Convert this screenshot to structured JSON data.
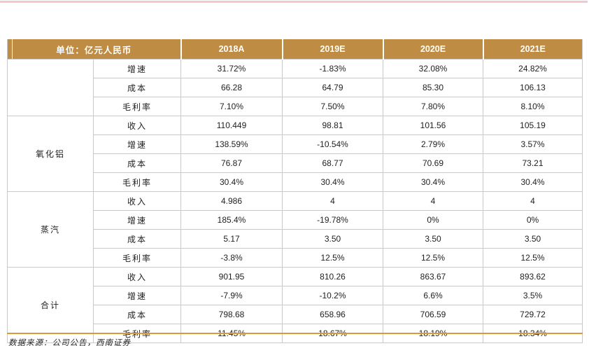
{
  "colors": {
    "header_bg": "#BE8C42",
    "header_text": "#FFFFFF",
    "grid": "#C9C9C9",
    "bottom_rule": "#DC9938",
    "top_rule": "#F2C8CE",
    "body_text": "#1F1F1F"
  },
  "table": {
    "unit_header": "单位：亿元人民币",
    "year_columns": [
      "2018A",
      "2019E",
      "2020E",
      "2021E"
    ],
    "groups": [
      {
        "category": "",
        "rows": [
          {
            "metric": "增速",
            "values": [
              "31.72%",
              "-1.83%",
              "32.08%",
              "24.82%"
            ]
          },
          {
            "metric": "成本",
            "values": [
              "66.28",
              "64.79",
              "85.30",
              "106.13"
            ]
          },
          {
            "metric": "毛利率",
            "values": [
              "7.10%",
              "7.50%",
              "7.80%",
              "8.10%"
            ]
          }
        ]
      },
      {
        "category": "氧化铝",
        "rows": [
          {
            "metric": "收入",
            "values": [
              "110.449",
              "98.81",
              "101.56",
              "105.19"
            ]
          },
          {
            "metric": "增速",
            "values": [
              "138.59%",
              "-10.54%",
              "2.79%",
              "3.57%"
            ]
          },
          {
            "metric": "成本",
            "values": [
              "76.87",
              "68.77",
              "70.69",
              "73.21"
            ]
          },
          {
            "metric": "毛利率",
            "values": [
              "30.4%",
              "30.4%",
              "30.4%",
              "30.4%"
            ]
          }
        ]
      },
      {
        "category": "蒸汽",
        "rows": [
          {
            "metric": "收入",
            "values": [
              "4.986",
              "4",
              "4",
              "4"
            ]
          },
          {
            "metric": "增速",
            "values": [
              "185.4%",
              "-19.78%",
              "0%",
              "0%"
            ]
          },
          {
            "metric": "成本",
            "values": [
              "5.17",
              "3.50",
              "3.50",
              "3.50"
            ]
          },
          {
            "metric": "毛利率",
            "values": [
              "-3.8%",
              "12.5%",
              "12.5%",
              "12.5%"
            ]
          }
        ]
      },
      {
        "category": "合计",
        "rows": [
          {
            "metric": "收入",
            "values": [
              "901.95",
              "810.26",
              "863.67",
              "893.62"
            ]
          },
          {
            "metric": "增速",
            "values": [
              "-7.9%",
              "-10.2%",
              "6.6%",
              "3.5%"
            ]
          },
          {
            "metric": "成本",
            "values": [
              "798.68",
              "658.96",
              "706.59",
              "729.72"
            ]
          },
          {
            "metric": "毛利率",
            "values": [
              "11.45%",
              "18.67%",
              "18.19%",
              "18.34%"
            ]
          }
        ]
      }
    ]
  },
  "source_note": {
    "text": "数据来源：公司公告，西南证券"
  }
}
